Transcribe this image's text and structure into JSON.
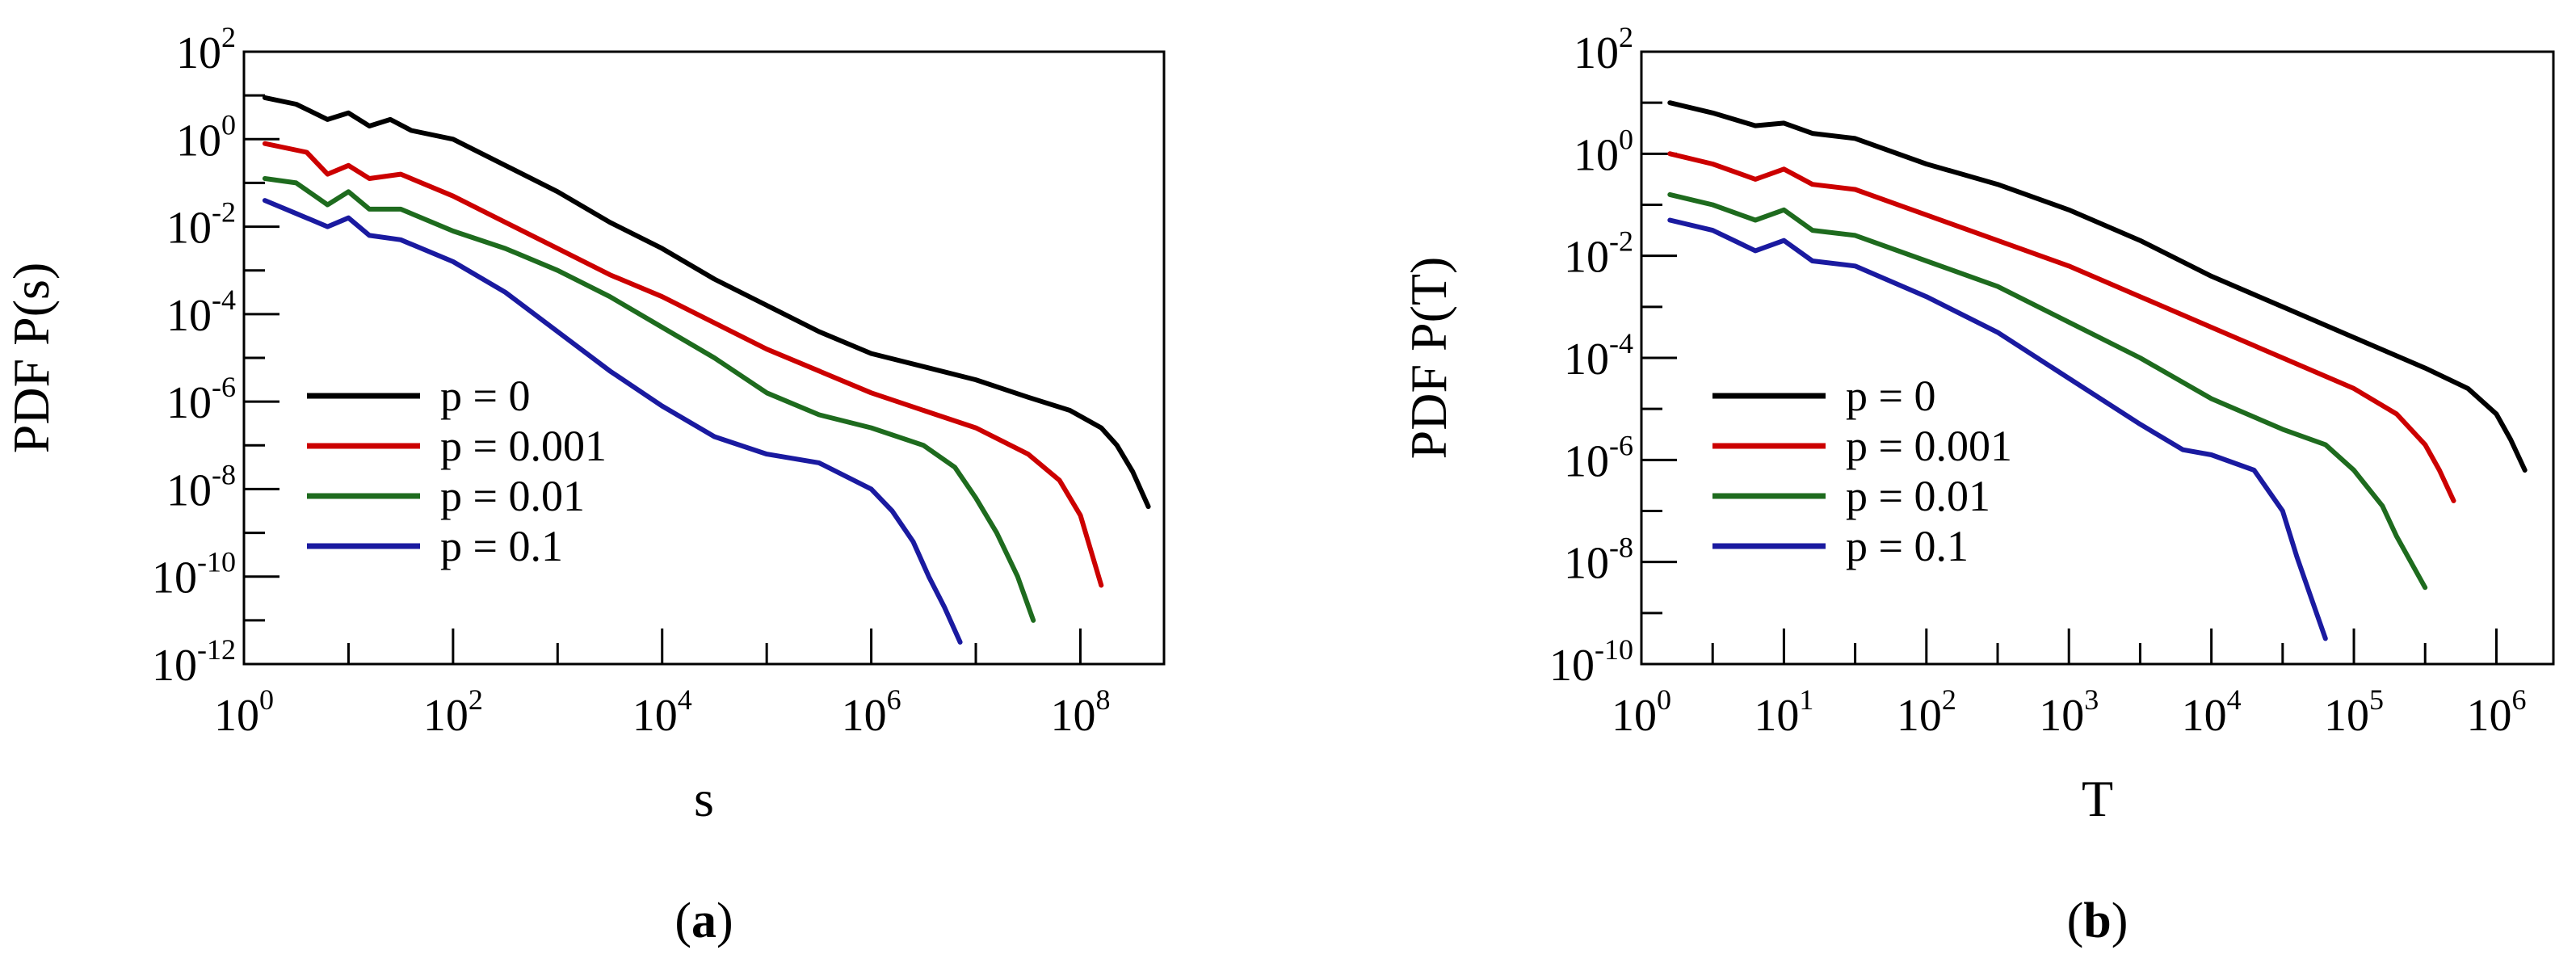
{
  "chart_data": [
    {
      "type": "line",
      "panel_label": "a",
      "panel_label_text": "(a)",
      "xscale": "log",
      "yscale": "log",
      "xlabel": "s",
      "ylabel": "PDF P(s)",
      "xlim_exp": [
        0,
        8.8
      ],
      "ylim_exp": [
        -12,
        2
      ],
      "x_tick_exps": [
        0,
        2,
        4,
        6,
        8
      ],
      "y_tick_exps": [
        2,
        0,
        -2,
        -4,
        -6,
        -8,
        -10,
        -12
      ],
      "x_tick_labels": [
        {
          "base": "10",
          "exp": "0"
        },
        {
          "base": "10",
          "exp": "2"
        },
        {
          "base": "10",
          "exp": "4"
        },
        {
          "base": "10",
          "exp": "6"
        },
        {
          "base": "10",
          "exp": "8"
        }
      ],
      "y_tick_labels": [
        {
          "base": "10",
          "exp": "2"
        },
        {
          "base": "10",
          "exp": "0"
        },
        {
          "base": "10",
          "exp": "-2"
        },
        {
          "base": "10",
          "exp": "-4"
        },
        {
          "base": "10",
          "exp": "-6"
        },
        {
          "base": "10",
          "exp": "-8"
        },
        {
          "base": "10",
          "exp": "-10"
        },
        {
          "base": "10",
          "exp": "-12"
        }
      ],
      "legend": "left",
      "series": [
        {
          "name": "p = 0",
          "color": "#000000",
          "log_x": [
            0.2,
            0.5,
            0.8,
            1.0,
            1.2,
            1.4,
            1.6,
            2.0,
            2.5,
            3.0,
            3.5,
            4.0,
            4.5,
            5.0,
            5.5,
            6.0,
            6.5,
            7.0,
            7.5,
            7.9,
            8.2,
            8.35,
            8.5,
            8.65
          ],
          "log_y": [
            0.95,
            0.8,
            0.45,
            0.6,
            0.3,
            0.45,
            0.2,
            0.0,
            -0.6,
            -1.2,
            -1.9,
            -2.5,
            -3.2,
            -3.8,
            -4.4,
            -4.9,
            -5.2,
            -5.5,
            -5.9,
            -6.2,
            -6.6,
            -7.0,
            -7.6,
            -8.4
          ]
        },
        {
          "name": "p = 0.001",
          "color": "#cc0000",
          "log_x": [
            0.2,
            0.6,
            0.8,
            1.0,
            1.2,
            1.5,
            2.0,
            2.5,
            3.0,
            3.5,
            4.0,
            4.5,
            5.0,
            5.5,
            6.0,
            6.5,
            7.0,
            7.5,
            7.8,
            8.0,
            8.1,
            8.2
          ],
          "log_y": [
            -0.1,
            -0.3,
            -0.8,
            -0.6,
            -0.9,
            -0.8,
            -1.3,
            -1.9,
            -2.5,
            -3.1,
            -3.6,
            -4.2,
            -4.8,
            -5.3,
            -5.8,
            -6.2,
            -6.6,
            -7.2,
            -7.8,
            -8.6,
            -9.4,
            -10.2
          ]
        },
        {
          "name": "p = 0.01",
          "color": "#1e6b1e",
          "log_x": [
            0.2,
            0.5,
            0.8,
            1.0,
            1.2,
            1.5,
            2.0,
            2.5,
            3.0,
            3.5,
            4.0,
            4.5,
            5.0,
            5.5,
            6.0,
            6.5,
            6.8,
            7.0,
            7.2,
            7.4,
            7.55
          ],
          "log_y": [
            -0.9,
            -1.0,
            -1.5,
            -1.2,
            -1.6,
            -1.6,
            -2.1,
            -2.5,
            -3.0,
            -3.6,
            -4.3,
            -5.0,
            -5.8,
            -6.3,
            -6.6,
            -7.0,
            -7.5,
            -8.2,
            -9.0,
            -10.0,
            -11.0
          ]
        },
        {
          "name": "p = 0.1",
          "color": "#1a1aa0",
          "log_x": [
            0.2,
            0.5,
            0.8,
            1.0,
            1.2,
            1.5,
            2.0,
            2.5,
            3.0,
            3.5,
            4.0,
            4.5,
            5.0,
            5.5,
            6.0,
            6.2,
            6.4,
            6.55,
            6.7,
            6.85
          ],
          "log_y": [
            -1.4,
            -1.7,
            -2.0,
            -1.8,
            -2.2,
            -2.3,
            -2.8,
            -3.5,
            -4.4,
            -5.3,
            -6.1,
            -6.8,
            -7.2,
            -7.4,
            -8.0,
            -8.5,
            -9.2,
            -10.0,
            -10.7,
            -11.5
          ]
        }
      ]
    },
    {
      "type": "line",
      "panel_label": "b",
      "panel_label_text": "(b)",
      "xscale": "log",
      "yscale": "log",
      "xlabel": "T",
      "ylabel": "PDF P(T)",
      "xlim_exp": [
        0,
        6.4
      ],
      "ylim_exp": [
        -10,
        2
      ],
      "x_tick_exps": [
        0,
        1,
        2,
        3,
        4,
        5,
        6
      ],
      "y_tick_exps": [
        2,
        0,
        -2,
        -4,
        -6,
        -8,
        -10
      ],
      "x_tick_labels": [
        {
          "base": "10",
          "exp": "0"
        },
        {
          "base": "10",
          "exp": "1"
        },
        {
          "base": "10",
          "exp": "2"
        },
        {
          "base": "10",
          "exp": "3"
        },
        {
          "base": "10",
          "exp": "4"
        },
        {
          "base": "10",
          "exp": "5"
        },
        {
          "base": "10",
          "exp": "6"
        }
      ],
      "y_tick_labels": [
        {
          "base": "10",
          "exp": "2"
        },
        {
          "base": "10",
          "exp": "0"
        },
        {
          "base": "10",
          "exp": "-2"
        },
        {
          "base": "10",
          "exp": "-4"
        },
        {
          "base": "10",
          "exp": "-6"
        },
        {
          "base": "10",
          "exp": "-8"
        },
        {
          "base": "10",
          "exp": "-10"
        }
      ],
      "legend": "left",
      "series": [
        {
          "name": "p = 0",
          "color": "#000000",
          "log_x": [
            0.2,
            0.5,
            0.8,
            1.0,
            1.2,
            1.5,
            2.0,
            2.5,
            3.0,
            3.5,
            4.0,
            4.5,
            5.0,
            5.5,
            5.8,
            6.0,
            6.1,
            6.2
          ],
          "log_y": [
            1.0,
            0.8,
            0.55,
            0.6,
            0.4,
            0.3,
            -0.2,
            -0.6,
            -1.1,
            -1.7,
            -2.4,
            -3.0,
            -3.6,
            -4.2,
            -4.6,
            -5.1,
            -5.6,
            -6.2
          ]
        },
        {
          "name": "p = 0.001",
          "color": "#cc0000",
          "log_x": [
            0.2,
            0.5,
            0.8,
            1.0,
            1.2,
            1.5,
            2.0,
            2.5,
            3.0,
            3.5,
            4.0,
            4.5,
            5.0,
            5.3,
            5.5,
            5.6,
            5.7
          ],
          "log_y": [
            0.0,
            -0.2,
            -0.5,
            -0.3,
            -0.6,
            -0.7,
            -1.2,
            -1.7,
            -2.2,
            -2.8,
            -3.4,
            -4.0,
            -4.6,
            -5.1,
            -5.7,
            -6.2,
            -6.8
          ]
        },
        {
          "name": "p = 0.01",
          "color": "#1e6b1e",
          "log_x": [
            0.2,
            0.5,
            0.8,
            1.0,
            1.2,
            1.5,
            2.0,
            2.5,
            3.0,
            3.5,
            4.0,
            4.5,
            4.8,
            5.0,
            5.2,
            5.3,
            5.4,
            5.5
          ],
          "log_y": [
            -0.8,
            -1.0,
            -1.3,
            -1.1,
            -1.5,
            -1.6,
            -2.1,
            -2.6,
            -3.3,
            -4.0,
            -4.8,
            -5.4,
            -5.7,
            -6.2,
            -6.9,
            -7.5,
            -8.0,
            -8.5
          ]
        },
        {
          "name": "p = 0.1",
          "color": "#1a1aa0",
          "log_x": [
            0.2,
            0.5,
            0.8,
            1.0,
            1.2,
            1.5,
            2.0,
            2.5,
            3.0,
            3.5,
            3.8,
            4.0,
            4.3,
            4.5,
            4.6,
            4.7,
            4.8
          ],
          "log_y": [
            -1.3,
            -1.5,
            -1.9,
            -1.7,
            -2.1,
            -2.2,
            -2.8,
            -3.5,
            -4.4,
            -5.3,
            -5.8,
            -5.9,
            -6.2,
            -7.0,
            -7.9,
            -8.7,
            -9.5
          ]
        }
      ]
    }
  ]
}
